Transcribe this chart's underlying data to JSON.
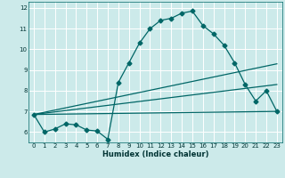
{
  "title": "",
  "xlabel": "Humidex (Indice chaleur)",
  "xlim": [
    -0.5,
    23.5
  ],
  "ylim": [
    5.5,
    12.3
  ],
  "yticks": [
    6,
    7,
    8,
    9,
    10,
    11,
    12
  ],
  "xticks": [
    0,
    1,
    2,
    3,
    4,
    5,
    6,
    7,
    8,
    9,
    10,
    11,
    12,
    13,
    14,
    15,
    16,
    17,
    18,
    19,
    20,
    21,
    22,
    23
  ],
  "bg_color": "#cceaea",
  "grid_color": "#ffffff",
  "line_color": "#006666",
  "line1_x": [
    0,
    1,
    2,
    3,
    4,
    5,
    6,
    7,
    8,
    9,
    10,
    11,
    12,
    13,
    14,
    15,
    16,
    17,
    18,
    19,
    20,
    21,
    22,
    23
  ],
  "line1_y": [
    6.85,
    6.0,
    6.15,
    6.4,
    6.35,
    6.1,
    6.05,
    5.65,
    8.4,
    9.35,
    10.3,
    11.0,
    11.4,
    11.5,
    11.75,
    11.85,
    11.15,
    10.75,
    10.2,
    9.35,
    8.3,
    7.5,
    8.0,
    7.0
  ],
  "line2_x": [
    0,
    23
  ],
  "line2_y": [
    6.85,
    7.0
  ],
  "line3_x": [
    0,
    23
  ],
  "line3_y": [
    6.85,
    9.3
  ],
  "line4_x": [
    0,
    23
  ],
  "line4_y": [
    6.85,
    8.3
  ],
  "marker": "D",
  "markersize": 2.5,
  "linewidth": 0.9
}
